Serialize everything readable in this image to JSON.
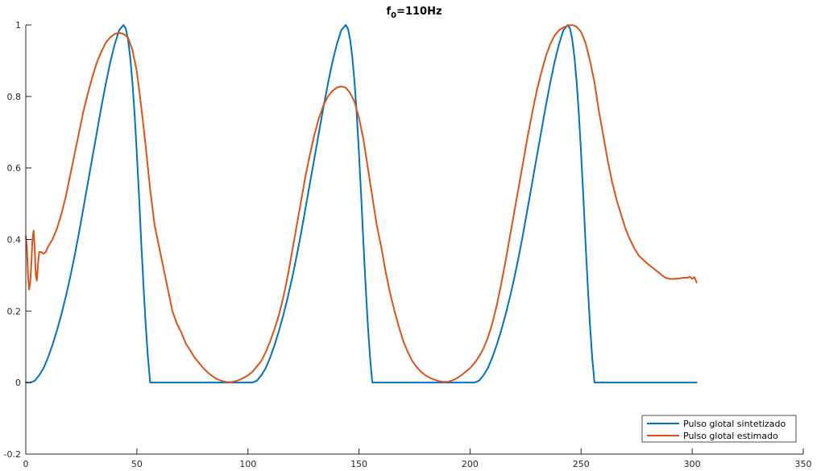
{
  "chart_data": {
    "type": "line",
    "title": {
      "base": "f",
      "sub": "0",
      "rest": "=110Hz"
    },
    "xlim": [
      0,
      350
    ],
    "ylim": [
      -0.2,
      1
    ],
    "x_ticks": [
      0,
      50,
      100,
      150,
      200,
      250,
      300,
      350
    ],
    "y_ticks": [
      -0.2,
      0,
      0.2,
      0.4,
      0.6,
      0.8,
      1
    ],
    "x_tick_labels": [
      "0",
      "50",
      "100",
      "150",
      "200",
      "250",
      "300",
      "350"
    ],
    "y_tick_labels": [
      "-0.2",
      "0",
      "0.2",
      "0.4",
      "0.6",
      "0.8",
      "1"
    ],
    "legend_position": "bottom-right",
    "series": [
      {
        "name": "Pulso glotal sintetizado",
        "color": "#0072bd",
        "points": [
          [
            0,
            0
          ],
          [
            2,
            0
          ],
          [
            4,
            0.005
          ],
          [
            6,
            0.02
          ],
          [
            8,
            0.04
          ],
          [
            10,
            0.07
          ],
          [
            12,
            0.105
          ],
          [
            14,
            0.145
          ],
          [
            16,
            0.19
          ],
          [
            18,
            0.24
          ],
          [
            20,
            0.295
          ],
          [
            22,
            0.355
          ],
          [
            24,
            0.42
          ],
          [
            26,
            0.49
          ],
          [
            28,
            0.56
          ],
          [
            30,
            0.63
          ],
          [
            32,
            0.7
          ],
          [
            34,
            0.77
          ],
          [
            36,
            0.835
          ],
          [
            38,
            0.895
          ],
          [
            40,
            0.945
          ],
          [
            42,
            0.985
          ],
          [
            44,
            1.0
          ],
          [
            45,
            0.99
          ],
          [
            46,
            0.96
          ],
          [
            47,
            0.91
          ],
          [
            48,
            0.84
          ],
          [
            49,
            0.75
          ],
          [
            50,
            0.64
          ],
          [
            51,
            0.52
          ],
          [
            52,
            0.39
          ],
          [
            53,
            0.27
          ],
          [
            54,
            0.16
          ],
          [
            55,
            0.07
          ],
          [
            56,
            0.0
          ],
          [
            60,
            0
          ],
          [
            80,
            0
          ],
          [
            100,
            0
          ],
          [
            102,
            0
          ],
          [
            104,
            0.005
          ],
          [
            106,
            0.02
          ],
          [
            108,
            0.04
          ],
          [
            110,
            0.07
          ],
          [
            112,
            0.105
          ],
          [
            114,
            0.145
          ],
          [
            116,
            0.19
          ],
          [
            118,
            0.24
          ],
          [
            120,
            0.295
          ],
          [
            122,
            0.355
          ],
          [
            124,
            0.42
          ],
          [
            126,
            0.49
          ],
          [
            128,
            0.56
          ],
          [
            130,
            0.63
          ],
          [
            132,
            0.7
          ],
          [
            134,
            0.77
          ],
          [
            136,
            0.835
          ],
          [
            138,
            0.895
          ],
          [
            140,
            0.945
          ],
          [
            142,
            0.985
          ],
          [
            144,
            1.0
          ],
          [
            145,
            0.99
          ],
          [
            146,
            0.96
          ],
          [
            147,
            0.91
          ],
          [
            148,
            0.84
          ],
          [
            149,
            0.75
          ],
          [
            150,
            0.64
          ],
          [
            151,
            0.52
          ],
          [
            152,
            0.39
          ],
          [
            153,
            0.27
          ],
          [
            154,
            0.16
          ],
          [
            155,
            0.07
          ],
          [
            156,
            0.0
          ],
          [
            160,
            0
          ],
          [
            180,
            0
          ],
          [
            200,
            0
          ],
          [
            202,
            0
          ],
          [
            204,
            0.005
          ],
          [
            206,
            0.02
          ],
          [
            208,
            0.04
          ],
          [
            210,
            0.07
          ],
          [
            212,
            0.105
          ],
          [
            214,
            0.145
          ],
          [
            216,
            0.19
          ],
          [
            218,
            0.24
          ],
          [
            220,
            0.295
          ],
          [
            222,
            0.355
          ],
          [
            224,
            0.42
          ],
          [
            226,
            0.49
          ],
          [
            228,
            0.56
          ],
          [
            230,
            0.63
          ],
          [
            232,
            0.7
          ],
          [
            234,
            0.77
          ],
          [
            236,
            0.835
          ],
          [
            238,
            0.895
          ],
          [
            240,
            0.945
          ],
          [
            242,
            0.985
          ],
          [
            244,
            1.0
          ],
          [
            245,
            0.99
          ],
          [
            246,
            0.96
          ],
          [
            247,
            0.91
          ],
          [
            248,
            0.84
          ],
          [
            249,
            0.75
          ],
          [
            250,
            0.64
          ],
          [
            251,
            0.52
          ],
          [
            252,
            0.39
          ],
          [
            253,
            0.27
          ],
          [
            254,
            0.16
          ],
          [
            255,
            0.07
          ],
          [
            256,
            0.0
          ],
          [
            260,
            0
          ],
          [
            280,
            0
          ],
          [
            302,
            0
          ]
        ]
      },
      {
        "name": "Pulso glotal estimado",
        "color": "#d95319",
        "points": [
          [
            0,
            0.41
          ],
          [
            0.5,
            0.38
          ],
          [
            1,
            0.3
          ],
          [
            1.5,
            0.26
          ],
          [
            2,
            0.28
          ],
          [
            2.5,
            0.33
          ],
          [
            3,
            0.4
          ],
          [
            3.5,
            0.425
          ],
          [
            4,
            0.38
          ],
          [
            4.5,
            0.3
          ],
          [
            5,
            0.285
          ],
          [
            5.5,
            0.33
          ],
          [
            6,
            0.365
          ],
          [
            7,
            0.365
          ],
          [
            8,
            0.36
          ],
          [
            9,
            0.365
          ],
          [
            10,
            0.38
          ],
          [
            12,
            0.4
          ],
          [
            14,
            0.43
          ],
          [
            16,
            0.47
          ],
          [
            18,
            0.52
          ],
          [
            20,
            0.58
          ],
          [
            22,
            0.64
          ],
          [
            24,
            0.7
          ],
          [
            26,
            0.76
          ],
          [
            28,
            0.81
          ],
          [
            30,
            0.855
          ],
          [
            32,
            0.895
          ],
          [
            34,
            0.925
          ],
          [
            36,
            0.95
          ],
          [
            38,
            0.965
          ],
          [
            40,
            0.975
          ],
          [
            42,
            0.978
          ],
          [
            44,
            0.975
          ],
          [
            46,
            0.965
          ],
          [
            48,
            0.93
          ],
          [
            50,
            0.87
          ],
          [
            52,
            0.77
          ],
          [
            54,
            0.66
          ],
          [
            56,
            0.54
          ],
          [
            58,
            0.44
          ],
          [
            60,
            0.38
          ],
          [
            62,
            0.32
          ],
          [
            64,
            0.26
          ],
          [
            66,
            0.2
          ],
          [
            68,
            0.165
          ],
          [
            70,
            0.14
          ],
          [
            72,
            0.11
          ],
          [
            74,
            0.09
          ],
          [
            76,
            0.07
          ],
          [
            78,
            0.055
          ],
          [
            80,
            0.04
          ],
          [
            82,
            0.028
          ],
          [
            84,
            0.018
          ],
          [
            86,
            0.01
          ],
          [
            88,
            0.005
          ],
          [
            90,
            0.002
          ],
          [
            92,
            0.001
          ],
          [
            94,
            0.003
          ],
          [
            96,
            0.007
          ],
          [
            98,
            0.013
          ],
          [
            100,
            0.02
          ],
          [
            102,
            0.03
          ],
          [
            104,
            0.045
          ],
          [
            106,
            0.06
          ],
          [
            108,
            0.085
          ],
          [
            110,
            0.115
          ],
          [
            112,
            0.15
          ],
          [
            114,
            0.19
          ],
          [
            116,
            0.24
          ],
          [
            118,
            0.3
          ],
          [
            120,
            0.37
          ],
          [
            122,
            0.44
          ],
          [
            124,
            0.51
          ],
          [
            126,
            0.58
          ],
          [
            128,
            0.64
          ],
          [
            130,
            0.695
          ],
          [
            132,
            0.74
          ],
          [
            134,
            0.775
          ],
          [
            136,
            0.8
          ],
          [
            138,
            0.815
          ],
          [
            140,
            0.825
          ],
          [
            142,
            0.828
          ],
          [
            144,
            0.825
          ],
          [
            146,
            0.81
          ],
          [
            148,
            0.785
          ],
          [
            150,
            0.74
          ],
          [
            152,
            0.68
          ],
          [
            154,
            0.6
          ],
          [
            156,
            0.52
          ],
          [
            158,
            0.44
          ],
          [
            160,
            0.38
          ],
          [
            162,
            0.31
          ],
          [
            164,
            0.25
          ],
          [
            166,
            0.2
          ],
          [
            168,
            0.155
          ],
          [
            170,
            0.115
          ],
          [
            172,
            0.085
          ],
          [
            174,
            0.06
          ],
          [
            176,
            0.043
          ],
          [
            178,
            0.03
          ],
          [
            180,
            0.02
          ],
          [
            182,
            0.013
          ],
          [
            184,
            0.008
          ],
          [
            186,
            0.004
          ],
          [
            188,
            0.002
          ],
          [
            190,
            0.002
          ],
          [
            192,
            0.006
          ],
          [
            194,
            0.012
          ],
          [
            196,
            0.02
          ],
          [
            198,
            0.03
          ],
          [
            200,
            0.04
          ],
          [
            202,
            0.055
          ],
          [
            204,
            0.072
          ],
          [
            206,
            0.095
          ],
          [
            208,
            0.125
          ],
          [
            210,
            0.165
          ],
          [
            212,
            0.215
          ],
          [
            214,
            0.275
          ],
          [
            216,
            0.34
          ],
          [
            218,
            0.41
          ],
          [
            220,
            0.48
          ],
          [
            222,
            0.55
          ],
          [
            224,
            0.62
          ],
          [
            226,
            0.69
          ],
          [
            228,
            0.755
          ],
          [
            230,
            0.815
          ],
          [
            232,
            0.865
          ],
          [
            234,
            0.91
          ],
          [
            236,
            0.945
          ],
          [
            238,
            0.97
          ],
          [
            240,
            0.985
          ],
          [
            242,
            0.993
          ],
          [
            244,
            0.998
          ],
          [
            246,
            1.0
          ],
          [
            248,
            0.995
          ],
          [
            250,
            0.98
          ],
          [
            252,
            0.95
          ],
          [
            254,
            0.9
          ],
          [
            256,
            0.84
          ],
          [
            258,
            0.76
          ],
          [
            260,
            0.69
          ],
          [
            262,
            0.62
          ],
          [
            264,
            0.56
          ],
          [
            266,
            0.51
          ],
          [
            268,
            0.47
          ],
          [
            270,
            0.43
          ],
          [
            272,
            0.4
          ],
          [
            274,
            0.375
          ],
          [
            276,
            0.355
          ],
          [
            278,
            0.343
          ],
          [
            280,
            0.332
          ],
          [
            282,
            0.322
          ],
          [
            284,
            0.312
          ],
          [
            286,
            0.302
          ],
          [
            288,
            0.293
          ],
          [
            290,
            0.29
          ],
          [
            292,
            0.29
          ],
          [
            294,
            0.291
          ],
          [
            296,
            0.293
          ],
          [
            298,
            0.293
          ],
          [
            299,
            0.296
          ],
          [
            300,
            0.29
          ],
          [
            301,
            0.295
          ],
          [
            302,
            0.28
          ]
        ]
      }
    ]
  }
}
